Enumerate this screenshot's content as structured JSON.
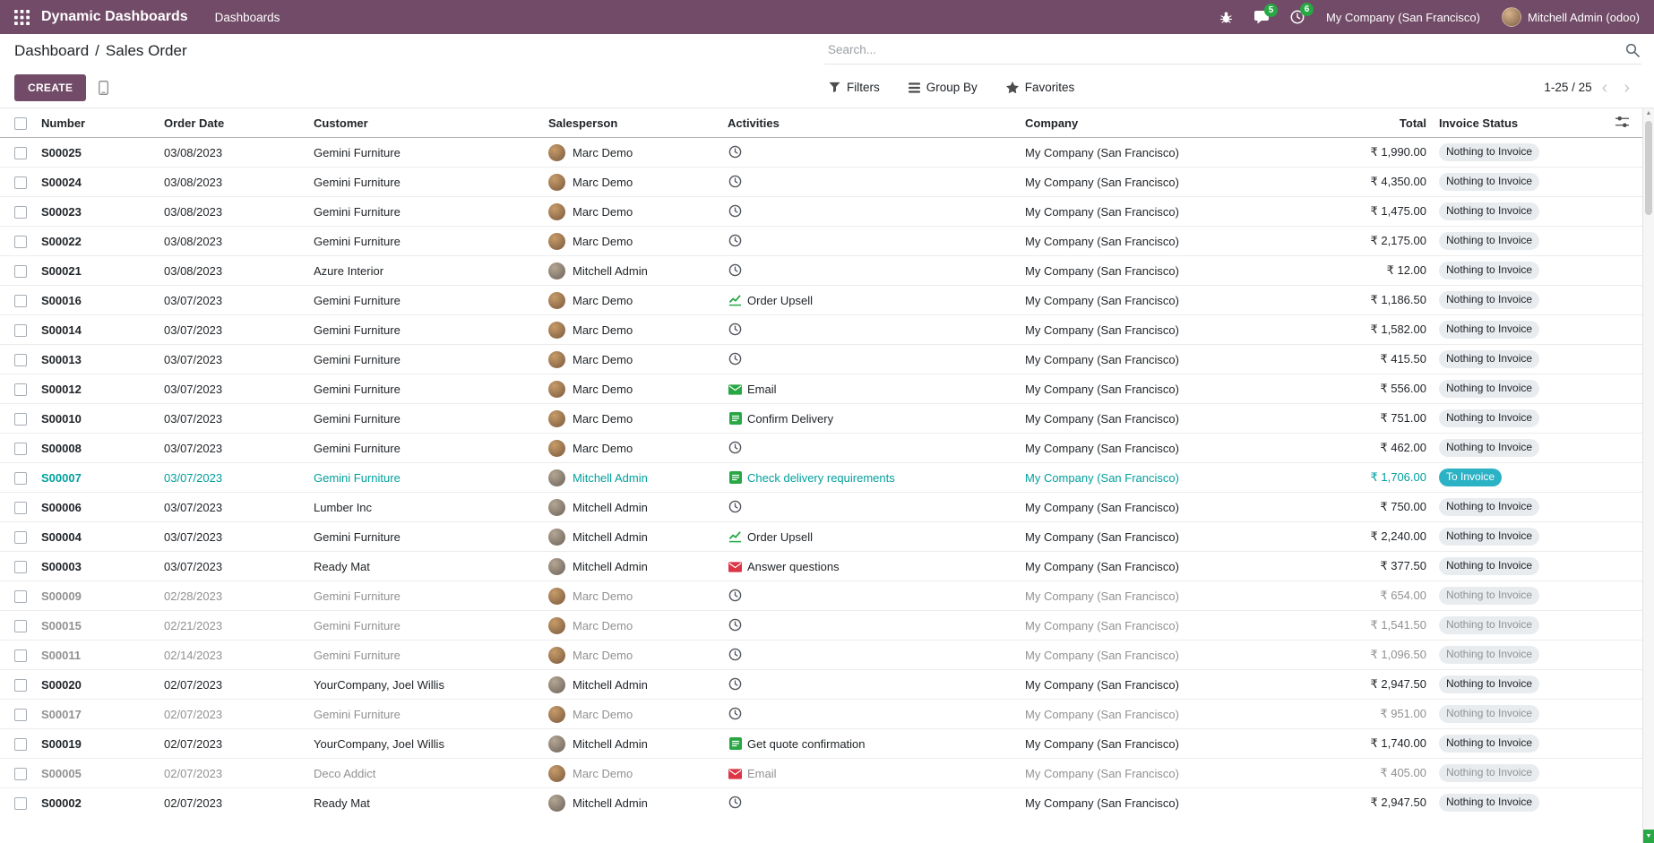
{
  "colors": {
    "brand": "#714B67",
    "badge_green": "#28a745",
    "muted_text": "#919191",
    "highlight_text": "#00a09d",
    "to_invoice_bg": "#2cb2c5",
    "status_pill_bg": "#e9ecef",
    "scroll_accent": "#28a745",
    "icon_green": "#28a745",
    "icon_red": "#dc3545",
    "icon_gray": "#51565c"
  },
  "topbar": {
    "app_name": "Dynamic Dashboards",
    "menu_item": "Dashboards",
    "messages_badge": "5",
    "activities_badge": "6",
    "company": "My Company (San Francisco)",
    "user": "Mitchell Admin (odoo)"
  },
  "breadcrumb": {
    "parent": "Dashboard",
    "separator": "/",
    "current": "Sales Order"
  },
  "search": {
    "placeholder": "Search..."
  },
  "controls": {
    "create_label": "CREATE",
    "filters": "Filters",
    "group_by": "Group By",
    "favorites": "Favorites",
    "pager": "1-25 / 25"
  },
  "table": {
    "columns": [
      "Number",
      "Order Date",
      "Customer",
      "Salesperson",
      "Activities",
      "Company",
      "Total",
      "Invoice Status"
    ],
    "rows": [
      {
        "number": "S00025",
        "date": "03/08/2023",
        "customer": "Gemini Furniture",
        "salesperson": "Marc Demo",
        "activity": {
          "type": "clock",
          "color": "#51565c",
          "label": ""
        },
        "company": "My Company (San Francisco)",
        "total": "₹ 1,990.00",
        "status": "Nothing to Invoice",
        "status_type": "none",
        "style": ""
      },
      {
        "number": "S00024",
        "date": "03/08/2023",
        "customer": "Gemini Furniture",
        "salesperson": "Marc Demo",
        "activity": {
          "type": "clock",
          "color": "#51565c",
          "label": ""
        },
        "company": "My Company (San Francisco)",
        "total": "₹ 4,350.00",
        "status": "Nothing to Invoice",
        "status_type": "none",
        "style": ""
      },
      {
        "number": "S00023",
        "date": "03/08/2023",
        "customer": "Gemini Furniture",
        "salesperson": "Marc Demo",
        "activity": {
          "type": "clock",
          "color": "#51565c",
          "label": ""
        },
        "company": "My Company (San Francisco)",
        "total": "₹ 1,475.00",
        "status": "Nothing to Invoice",
        "status_type": "none",
        "style": ""
      },
      {
        "number": "S00022",
        "date": "03/08/2023",
        "customer": "Gemini Furniture",
        "salesperson": "Marc Demo",
        "activity": {
          "type": "clock",
          "color": "#51565c",
          "label": ""
        },
        "company": "My Company (San Francisco)",
        "total": "₹ 2,175.00",
        "status": "Nothing to Invoice",
        "status_type": "none",
        "style": ""
      },
      {
        "number": "S00021",
        "date": "03/08/2023",
        "customer": "Azure Interior",
        "salesperson": "Mitchell Admin",
        "activity": {
          "type": "clock",
          "color": "#51565c",
          "label": ""
        },
        "company": "My Company (San Francisco)",
        "total": "₹ 12.00",
        "status": "Nothing to Invoice",
        "status_type": "none",
        "style": ""
      },
      {
        "number": "S00016",
        "date": "03/07/2023",
        "customer": "Gemini Furniture",
        "salesperson": "Marc Demo",
        "activity": {
          "type": "chart",
          "color": "#28a745",
          "label": "Order Upsell"
        },
        "company": "My Company (San Francisco)",
        "total": "₹ 1,186.50",
        "status": "Nothing to Invoice",
        "status_type": "none",
        "style": ""
      },
      {
        "number": "S00014",
        "date": "03/07/2023",
        "customer": "Gemini Furniture",
        "salesperson": "Marc Demo",
        "activity": {
          "type": "clock",
          "color": "#51565c",
          "label": ""
        },
        "company": "My Company (San Francisco)",
        "total": "₹ 1,582.00",
        "status": "Nothing to Invoice",
        "status_type": "none",
        "style": ""
      },
      {
        "number": "S00013",
        "date": "03/07/2023",
        "customer": "Gemini Furniture",
        "salesperson": "Marc Demo",
        "activity": {
          "type": "clock",
          "color": "#51565c",
          "label": ""
        },
        "company": "My Company (San Francisco)",
        "total": "₹ 415.50",
        "status": "Nothing to Invoice",
        "status_type": "none",
        "style": ""
      },
      {
        "number": "S00012",
        "date": "03/07/2023",
        "customer": "Gemini Furniture",
        "salesperson": "Marc Demo",
        "activity": {
          "type": "envelope",
          "color": "#28a745",
          "label": "Email"
        },
        "company": "My Company (San Francisco)",
        "total": "₹ 556.00",
        "status": "Nothing to Invoice",
        "status_type": "none",
        "style": ""
      },
      {
        "number": "S00010",
        "date": "03/07/2023",
        "customer": "Gemini Furniture",
        "salesperson": "Marc Demo",
        "activity": {
          "type": "list",
          "color": "#28a745",
          "label": "Confirm Delivery"
        },
        "company": "My Company (San Francisco)",
        "total": "₹ 751.00",
        "status": "Nothing to Invoice",
        "status_type": "none",
        "style": ""
      },
      {
        "number": "S00008",
        "date": "03/07/2023",
        "customer": "Gemini Furniture",
        "salesperson": "Marc Demo",
        "activity": {
          "type": "clock",
          "color": "#51565c",
          "label": ""
        },
        "company": "My Company (San Francisco)",
        "total": "₹ 462.00",
        "status": "Nothing to Invoice",
        "status_type": "none",
        "style": ""
      },
      {
        "number": "S00007",
        "date": "03/07/2023",
        "customer": "Gemini Furniture",
        "salesperson": "Mitchell Admin",
        "activity": {
          "type": "list",
          "color": "#28a745",
          "label": "Check delivery requirements"
        },
        "company": "My Company (San Francisco)",
        "total": "₹ 1,706.00",
        "status": "To Invoice",
        "status_type": "to-invoice",
        "style": "highlight"
      },
      {
        "number": "S00006",
        "date": "03/07/2023",
        "customer": "Lumber Inc",
        "salesperson": "Mitchell Admin",
        "activity": {
          "type": "clock",
          "color": "#51565c",
          "label": ""
        },
        "company": "My Company (San Francisco)",
        "total": "₹ 750.00",
        "status": "Nothing to Invoice",
        "status_type": "none",
        "style": ""
      },
      {
        "number": "S00004",
        "date": "03/07/2023",
        "customer": "Gemini Furniture",
        "salesperson": "Mitchell Admin",
        "activity": {
          "type": "chart",
          "color": "#28a745",
          "label": "Order Upsell"
        },
        "company": "My Company (San Francisco)",
        "total": "₹ 2,240.00",
        "status": "Nothing to Invoice",
        "status_type": "none",
        "style": ""
      },
      {
        "number": "S00003",
        "date": "03/07/2023",
        "customer": "Ready Mat",
        "salesperson": "Mitchell Admin",
        "activity": {
          "type": "envelope",
          "color": "#dc3545",
          "label": "Answer questions"
        },
        "company": "My Company (San Francisco)",
        "total": "₹ 377.50",
        "status": "Nothing to Invoice",
        "status_type": "none",
        "style": ""
      },
      {
        "number": "S00009",
        "date": "02/28/2023",
        "customer": "Gemini Furniture",
        "salesperson": "Marc Demo",
        "activity": {
          "type": "clock",
          "color": "#51565c",
          "label": ""
        },
        "company": "My Company (San Francisco)",
        "total": "₹ 654.00",
        "status": "Nothing to Invoice",
        "status_type": "none",
        "style": "muted"
      },
      {
        "number": "S00015",
        "date": "02/21/2023",
        "customer": "Gemini Furniture",
        "salesperson": "Marc Demo",
        "activity": {
          "type": "clock",
          "color": "#51565c",
          "label": ""
        },
        "company": "My Company (San Francisco)",
        "total": "₹ 1,541.50",
        "status": "Nothing to Invoice",
        "status_type": "none",
        "style": "muted"
      },
      {
        "number": "S00011",
        "date": "02/14/2023",
        "customer": "Gemini Furniture",
        "salesperson": "Marc Demo",
        "activity": {
          "type": "clock",
          "color": "#51565c",
          "label": ""
        },
        "company": "My Company (San Francisco)",
        "total": "₹ 1,096.50",
        "status": "Nothing to Invoice",
        "status_type": "none",
        "style": "muted"
      },
      {
        "number": "S00020",
        "date": "02/07/2023",
        "customer": "YourCompany, Joel Willis",
        "salesperson": "Mitchell Admin",
        "activity": {
          "type": "clock",
          "color": "#51565c",
          "label": ""
        },
        "company": "My Company (San Francisco)",
        "total": "₹ 2,947.50",
        "status": "Nothing to Invoice",
        "status_type": "none",
        "style": ""
      },
      {
        "number": "S00017",
        "date": "02/07/2023",
        "customer": "Gemini Furniture",
        "salesperson": "Marc Demo",
        "activity": {
          "type": "clock",
          "color": "#51565c",
          "label": ""
        },
        "company": "My Company (San Francisco)",
        "total": "₹ 951.00",
        "status": "Nothing to Invoice",
        "status_type": "none",
        "style": "muted"
      },
      {
        "number": "S00019",
        "date": "02/07/2023",
        "customer": "YourCompany, Joel Willis",
        "salesperson": "Mitchell Admin",
        "activity": {
          "type": "list",
          "color": "#28a745",
          "label": "Get quote confirmation"
        },
        "company": "My Company (San Francisco)",
        "total": "₹ 1,740.00",
        "status": "Nothing to Invoice",
        "status_type": "none",
        "style": ""
      },
      {
        "number": "S00005",
        "date": "02/07/2023",
        "customer": "Deco Addict",
        "salesperson": "Marc Demo",
        "activity": {
          "type": "envelope",
          "color": "#dc3545",
          "label": "Email"
        },
        "company": "My Company (San Francisco)",
        "total": "₹ 405.00",
        "status": "Nothing to Invoice",
        "status_type": "none",
        "style": "muted"
      },
      {
        "number": "S00002",
        "date": "02/07/2023",
        "customer": "Ready Mat",
        "salesperson": "Mitchell Admin",
        "activity": {
          "type": "clock",
          "color": "#51565c",
          "label": ""
        },
        "company": "My Company (San Francisco)",
        "total": "₹ 2,947.50",
        "status": "Nothing to Invoice",
        "status_type": "none",
        "style": ""
      }
    ]
  }
}
